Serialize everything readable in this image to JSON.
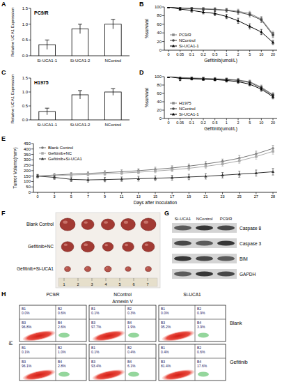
{
  "chart_data": [
    {
      "panel": "A",
      "type": "bar",
      "annotation": "PC9/R",
      "y_label": "Relative UCA1 Expression",
      "categories": [
        "Si-UCA1-1",
        "Si-UCA1-2",
        "NControl"
      ],
      "values": [
        0.35,
        0.85,
        1.0
      ],
      "errors": [
        0.15,
        0.15,
        0.15
      ],
      "color": "#ffffff",
      "ylim": [
        0,
        1.5
      ],
      "yticks": [
        {
          "value": 0,
          "label": "0.0"
        },
        {
          "value": 0.5,
          "label": "0.5"
        },
        {
          "value": 1,
          "label": "1.0"
        },
        {
          "value": 1.5,
          "label": "1.5"
        }
      ],
      "grid": false
    },
    {
      "panel": "B",
      "type": "line",
      "x_label": "Gefitinib(umol/L)",
      "y_label": "%survival",
      "categories": [
        "0",
        "0.05",
        "0.1",
        "0.2",
        "0.5",
        "1",
        "2",
        "5",
        "10",
        "20"
      ],
      "series": [
        {
          "name": "PC9/R",
          "color": "#888888",
          "marker": "square",
          "values": [
            100,
            98,
            97,
            96,
            95,
            93,
            90,
            85,
            72,
            38
          ],
          "errors": [
            2,
            3,
            3,
            4,
            3,
            4,
            5,
            5,
            6,
            6
          ]
        },
        {
          "name": "NControl",
          "color": "#444444",
          "marker": "circle",
          "values": [
            100,
            97,
            96,
            95,
            94,
            92,
            88,
            82,
            70,
            35
          ],
          "errors": [
            2,
            3,
            3,
            3,
            4,
            4,
            5,
            5,
            6,
            6
          ]
        },
        {
          "name": "Si-UCA1-1",
          "color": "#000000",
          "marker": "triangle",
          "values": [
            100,
            95,
            92,
            88,
            85,
            78,
            68,
            55,
            42,
            18
          ],
          "errors": [
            2,
            3,
            4,
            4,
            5,
            5,
            6,
            6,
            6,
            5
          ]
        }
      ],
      "ylim": [
        0,
        100
      ],
      "yticks": [
        0,
        20,
        40,
        60,
        80,
        100
      ],
      "legend": "lower left",
      "grid": false
    },
    {
      "panel": "C",
      "type": "bar",
      "annotation": "H1975",
      "y_label": "Relative UCA1 Expression",
      "categories": [
        "Si-UCA1-1",
        "Si-UCA1-2",
        "NControl"
      ],
      "values": [
        0.3,
        0.9,
        1.0
      ],
      "errors": [
        0.12,
        0.15,
        0.12
      ],
      "color": "#ffffff",
      "ylim": [
        0,
        1.5
      ],
      "yticks": [
        {
          "value": 0,
          "label": "0.0"
        },
        {
          "value": 0.5,
          "label": "0.5"
        },
        {
          "value": 1,
          "label": "1.0"
        },
        {
          "value": 1.5,
          "label": "1.5"
        }
      ],
      "grid": false
    },
    {
      "panel": "D",
      "type": "line",
      "x_label": "Gefitinib(umol/L)",
      "y_label": "%survival",
      "categories": [
        "0",
        "0.05",
        "0.1",
        "0.2",
        "0.5",
        "1",
        "2",
        "5",
        "10",
        "20"
      ],
      "series": [
        {
          "name": "H1975",
          "color": "#888888",
          "marker": "square",
          "values": [
            100,
            98,
            97,
            96,
            95,
            94,
            92,
            88,
            75,
            57
          ],
          "errors": [
            2,
            8,
            3,
            3,
            3,
            3,
            4,
            4,
            5,
            5
          ]
        },
        {
          "name": "NControl",
          "color": "#444444",
          "marker": "circle",
          "values": [
            100,
            97,
            96,
            95,
            94,
            93,
            91,
            86,
            73,
            55
          ],
          "errors": [
            2,
            6,
            3,
            3,
            3,
            3,
            4,
            4,
            5,
            5
          ]
        },
        {
          "name": "Si-UCA1-1",
          "color": "#000000",
          "marker": "triangle",
          "values": [
            100,
            96,
            95,
            94,
            93,
            91,
            88,
            82,
            70,
            52
          ],
          "errors": [
            2,
            5,
            3,
            3,
            3,
            4,
            4,
            4,
            5,
            5
          ]
        }
      ],
      "ylim": [
        0,
        100
      ],
      "yticks": [
        0,
        20,
        40,
        60,
        80,
        100
      ],
      "legend": "lower left",
      "grid": false
    },
    {
      "panel": "E",
      "type": "line",
      "x_label": "Days after inoculation",
      "y_label": "Tumor Volume(mm³)",
      "categories": [
        "0",
        "3",
        "5",
        "7",
        "9",
        "11",
        "13",
        "15",
        "17",
        "19",
        "21",
        "23",
        "25",
        "27",
        "28"
      ],
      "series": [
        {
          "name": "Blank Control",
          "color": "#777777",
          "marker": "circle",
          "values": [
            150,
            160,
            168,
            175,
            182,
            190,
            200,
            212,
            225,
            242,
            262,
            285,
            315,
            355,
            405
          ],
          "errors": [
            15,
            15,
            15,
            15,
            18,
            18,
            18,
            20,
            20,
            20,
            22,
            22,
            25,
            25,
            28
          ]
        },
        {
          "name": "Gefitinib+NC",
          "color": "#aaaaaa",
          "marker": "square",
          "values": [
            150,
            155,
            160,
            165,
            170,
            178,
            186,
            196,
            208,
            222,
            240,
            262,
            290,
            330,
            378
          ],
          "errors": [
            12,
            12,
            14,
            14,
            15,
            15,
            16,
            16,
            18,
            18,
            20,
            20,
            22,
            24,
            26
          ]
        },
        {
          "name": "Gefitinib+Si-UCA1",
          "color": "#333333",
          "marker": "triangle",
          "values": [
            150,
            138,
            120,
            115,
            118,
            122,
            126,
            130,
            135,
            142,
            148,
            158,
            168,
            178,
            190
          ],
          "errors": [
            15,
            18,
            20,
            20,
            20,
            20,
            22,
            22,
            22,
            25,
            25,
            25,
            28,
            28,
            30
          ]
        }
      ],
      "ylim": [
        0,
        450
      ],
      "yticks": [
        0,
        50,
        100,
        150,
        200,
        250,
        300,
        350,
        400,
        450
      ],
      "legend": "upper left",
      "grid": false
    }
  ],
  "panel_f": {
    "panel": "F",
    "rows": [
      "Blank Control",
      "Gefitinib+NC",
      "Gefitinib+Si-UCA1"
    ],
    "ruler": [
      "1",
      "2",
      "3",
      "4",
      "5",
      "6",
      "7"
    ]
  },
  "panel_g": {
    "panel": "G",
    "columns": [
      "Si-UCA1",
      "NControl",
      "PC9/R"
    ],
    "rows": [
      "Caspase 8",
      "Caspase 3",
      "BIM",
      "GAPDH"
    ]
  },
  "panel_h": {
    "panel": "H",
    "columns": [
      "PC9/R",
      "NControl",
      "Si-UCA1"
    ],
    "rows": [
      "Blank",
      "Gefitinib"
    ],
    "x_label": "Annexin V",
    "y_label": "PI",
    "plots": [
      [
        [
          {
            "name": "B1",
            "text": "0.0%"
          },
          {
            "name": "B2",
            "text": "0.6%"
          },
          {
            "name": "B3",
            "text": "96.8%"
          },
          {
            "name": "B4",
            "text": "2.6%"
          }
        ],
        [
          {
            "name": "B1",
            "text": "0.1%"
          },
          {
            "name": "B2",
            "text": "0.3%"
          },
          {
            "name": "B3",
            "text": "97.7%"
          },
          {
            "name": "B4",
            "text": "1.9%"
          }
        ],
        [
          {
            "name": "B1",
            "text": "0.0%"
          },
          {
            "name": "B2",
            "text": "0.9%"
          },
          {
            "name": "B3",
            "text": "95.2%"
          },
          {
            "name": "B4",
            "text": "3.9%"
          }
        ]
      ],
      [
        [
          {
            "name": "B1",
            "text": "0.1%"
          },
          {
            "name": "B2",
            "text": "1.0%"
          },
          {
            "name": "B3",
            "text": "96.1%"
          },
          {
            "name": "B4",
            "text": "2.8%"
          }
        ],
        [
          {
            "name": "B1",
            "text": "0.1%"
          },
          {
            "name": "B2",
            "text": "0.4%"
          },
          {
            "name": "B3",
            "text": "93.4%"
          },
          {
            "name": "B4",
            "text": "6.1%"
          }
        ],
        [
          {
            "name": "B1",
            "text": "0.4%"
          },
          {
            "name": "B2",
            "text": "0.6%"
          },
          {
            "name": "B3",
            "text": "81.4%"
          },
          {
            "name": "B4",
            "text": "17.6%"
          }
        ]
      ]
    ]
  }
}
